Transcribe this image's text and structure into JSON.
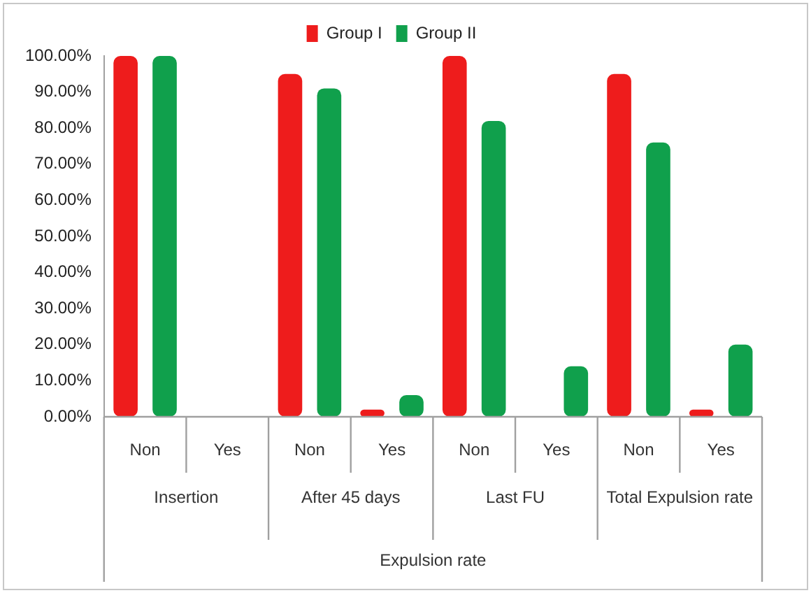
{
  "chart_data": {
    "type": "bar",
    "categories": [
      "Non",
      "Yes",
      "Non",
      "Yes",
      "Non",
      "Yes",
      "Non",
      "Yes"
    ],
    "annotations": [
      "Insertion",
      "After 45 days",
      "Last FU",
      "Total Expulsion rate",
      "Expulsion rate"
    ],
    "series": [
      {
        "name": "Group I",
        "color": "#ee1c1c",
        "values": [
          100,
          0,
          95,
          2,
          100,
          0,
          95,
          2
        ]
      },
      {
        "name": "Group II",
        "color": "#10a04c",
        "values": [
          100,
          0,
          91,
          6,
          82,
          14,
          76,
          20
        ]
      }
    ],
    "ylim": [
      0,
      100
    ],
    "yticks": [
      {
        "value": 0,
        "label": "0.00%"
      },
      {
        "value": 10,
        "label": "10.00%"
      },
      {
        "value": 20,
        "label": "20.00%"
      },
      {
        "value": 30,
        "label": "30.00%"
      },
      {
        "value": 40,
        "label": "40.00%"
      },
      {
        "value": 50,
        "label": "50.00%"
      },
      {
        "value": 60,
        "label": "60.00%"
      },
      {
        "value": 70,
        "label": "70.00%"
      },
      {
        "value": 80,
        "label": "80.00%"
      },
      {
        "value": 90,
        "label": "90.00%"
      },
      {
        "value": 100,
        "label": "100.00%"
      }
    ],
    "grid": false,
    "legend": "top"
  }
}
